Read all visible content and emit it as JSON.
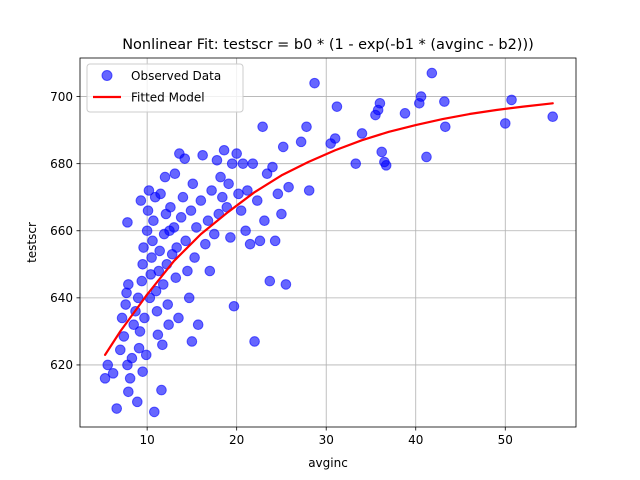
{
  "chart_data": {
    "type": "scatter",
    "title": "Nonlinear Fit: testscr = b0 * (1 - exp(-b1 * (avginc - b2)))",
    "xlabel": "avginc",
    "ylabel": "testscr",
    "xlim": [
      2.5,
      57.9
    ],
    "ylim": [
      601.5,
      711.5
    ],
    "xticks": [
      10,
      20,
      30,
      40,
      50
    ],
    "yticks": [
      620,
      640,
      660,
      680,
      700
    ],
    "grid": true,
    "legend_position": "upper-left",
    "series": [
      {
        "name": "Observed Data",
        "kind": "scatter",
        "color": "#0000ff",
        "points": [
          [
            5.3,
            616
          ],
          [
            5.6,
            620
          ],
          [
            6.2,
            617.5
          ],
          [
            6.6,
            607
          ],
          [
            7.0,
            624.5
          ],
          [
            7.4,
            628.5
          ],
          [
            7.2,
            634
          ],
          [
            7.6,
            638
          ],
          [
            7.7,
            641.5
          ],
          [
            7.9,
            644
          ],
          [
            7.8,
            662.5
          ],
          [
            7.8,
            620
          ],
          [
            7.9,
            612
          ],
          [
            8.1,
            616
          ],
          [
            8.3,
            622
          ],
          [
            8.5,
            632
          ],
          [
            8.7,
            636
          ],
          [
            8.9,
            609
          ],
          [
            9.0,
            640
          ],
          [
            9.1,
            625
          ],
          [
            9.2,
            630
          ],
          [
            9.4,
            645
          ],
          [
            9.5,
            650
          ],
          [
            9.6,
            655
          ],
          [
            9.3,
            669
          ],
          [
            9.5,
            618
          ],
          [
            9.7,
            634
          ],
          [
            9.9,
            623
          ],
          [
            10.0,
            660
          ],
          [
            10.1,
            666
          ],
          [
            10.2,
            672
          ],
          [
            10.3,
            640
          ],
          [
            10.4,
            647
          ],
          [
            10.5,
            652
          ],
          [
            10.6,
            657
          ],
          [
            10.7,
            663
          ],
          [
            10.8,
            606
          ],
          [
            10.9,
            670
          ],
          [
            11.0,
            642
          ],
          [
            11.1,
            636
          ],
          [
            11.2,
            629
          ],
          [
            11.3,
            648
          ],
          [
            11.4,
            654
          ],
          [
            11.5,
            671
          ],
          [
            11.6,
            612.5
          ],
          [
            11.7,
            626
          ],
          [
            11.8,
            644
          ],
          [
            11.9,
            659
          ],
          [
            12.0,
            676
          ],
          [
            12.1,
            665
          ],
          [
            12.2,
            650
          ],
          [
            12.3,
            638
          ],
          [
            12.4,
            632
          ],
          [
            12.5,
            660
          ],
          [
            12.6,
            667
          ],
          [
            12.8,
            653
          ],
          [
            13.0,
            661
          ],
          [
            13.1,
            677
          ],
          [
            13.2,
            646
          ],
          [
            13.3,
            655
          ],
          [
            13.5,
            634
          ],
          [
            13.6,
            683
          ],
          [
            13.8,
            664
          ],
          [
            14.0,
            670
          ],
          [
            14.2,
            681.5
          ],
          [
            14.3,
            657
          ],
          [
            14.5,
            648
          ],
          [
            14.7,
            640
          ],
          [
            14.9,
            666
          ],
          [
            15.0,
            627
          ],
          [
            15.1,
            674
          ],
          [
            15.3,
            652
          ],
          [
            15.5,
            661
          ],
          [
            15.7,
            632
          ],
          [
            16.0,
            669
          ],
          [
            16.2,
            682.5
          ],
          [
            16.5,
            656
          ],
          [
            16.8,
            663
          ],
          [
            17.0,
            648
          ],
          [
            17.2,
            672
          ],
          [
            17.5,
            659
          ],
          [
            17.8,
            681
          ],
          [
            18.0,
            665
          ],
          [
            18.2,
            676
          ],
          [
            18.4,
            670
          ],
          [
            18.6,
            684
          ],
          [
            18.9,
            667
          ],
          [
            19.1,
            674
          ],
          [
            19.3,
            658
          ],
          [
            19.5,
            680
          ],
          [
            19.7,
            637.5
          ],
          [
            20.0,
            683
          ],
          [
            20.2,
            671
          ],
          [
            20.5,
            666
          ],
          [
            20.7,
            680
          ],
          [
            21.0,
            660
          ],
          [
            21.2,
            672
          ],
          [
            21.5,
            656
          ],
          [
            21.8,
            680
          ],
          [
            22.0,
            627
          ],
          [
            22.3,
            669
          ],
          [
            22.6,
            657
          ],
          [
            22.9,
            691
          ],
          [
            23.1,
            663
          ],
          [
            23.4,
            677
          ],
          [
            23.7,
            645
          ],
          [
            24.0,
            679
          ],
          [
            24.3,
            657
          ],
          [
            24.6,
            671
          ],
          [
            25.0,
            665
          ],
          [
            25.2,
            685
          ],
          [
            25.5,
            644
          ],
          [
            25.8,
            673
          ],
          [
            27.2,
            686.5
          ],
          [
            27.8,
            691
          ],
          [
            28.1,
            672
          ],
          [
            28.7,
            704
          ],
          [
            30.5,
            686
          ],
          [
            31.0,
            687.5
          ],
          [
            31.2,
            697
          ],
          [
            33.3,
            680
          ],
          [
            34.0,
            689
          ],
          [
            35.5,
            694.5
          ],
          [
            35.8,
            696
          ],
          [
            36.0,
            698
          ],
          [
            36.2,
            683.5
          ],
          [
            36.5,
            680.5
          ],
          [
            36.7,
            679.5
          ],
          [
            38.8,
            695
          ],
          [
            40.4,
            698
          ],
          [
            40.6,
            700
          ],
          [
            41.2,
            682
          ],
          [
            41.8,
            707
          ],
          [
            43.2,
            698.5
          ],
          [
            43.3,
            691
          ],
          [
            50.0,
            692
          ],
          [
            50.7,
            699
          ],
          [
            55.3,
            694
          ]
        ]
      },
      {
        "name": "Fitted Model",
        "kind": "line",
        "color": "#ff0000",
        "points": [
          [
            5.3,
            623
          ],
          [
            7,
            630
          ],
          [
            10,
            641
          ],
          [
            13,
            651
          ],
          [
            16,
            659
          ],
          [
            19,
            665.5
          ],
          [
            22,
            671.5
          ],
          [
            25,
            676.5
          ],
          [
            28,
            680.5
          ],
          [
            31,
            684
          ],
          [
            34,
            687
          ],
          [
            37,
            689.5
          ],
          [
            40,
            691.5
          ],
          [
            43,
            693.3
          ],
          [
            46,
            694.8
          ],
          [
            49,
            696
          ],
          [
            52,
            697
          ],
          [
            55.3,
            698
          ]
        ]
      }
    ]
  }
}
